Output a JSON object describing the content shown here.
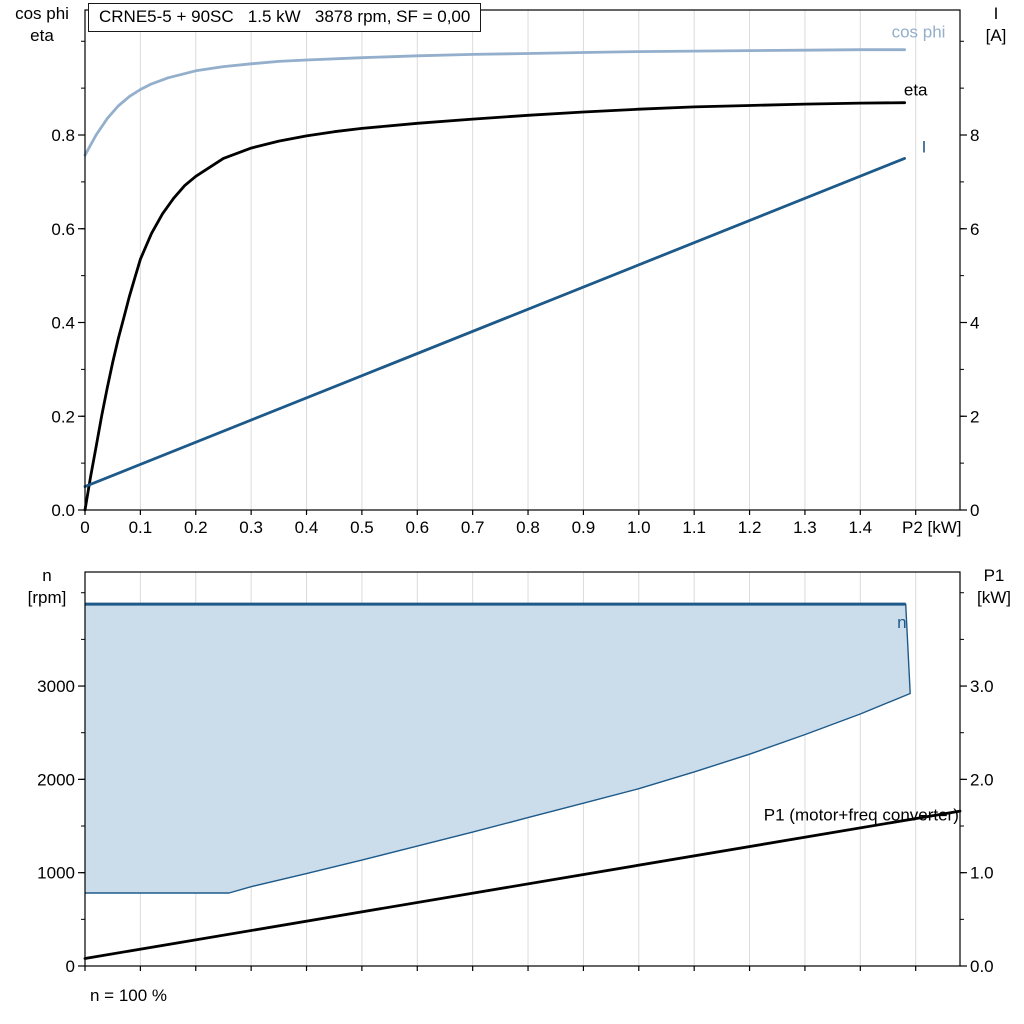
{
  "header": {
    "title_box": "CRNE5-5 + 90SC   1.5 kW   3878 rpm, SF = 0,00"
  },
  "axis_titles": {
    "top_left_1": "cos phi",
    "top_left_2": "eta",
    "top_right_1": "I",
    "top_right_2": "[A]",
    "x_unit": "P2 [kW]",
    "bottom_left_1": "n",
    "bottom_left_2": "[rpm]",
    "bottom_right_1": "P1",
    "bottom_right_2": "[kW]",
    "footnote": "n = 100 %"
  },
  "colors": {
    "curve_blue": "#1E5A89",
    "light_blue": "#93AFCC",
    "fill_blue": "#CBDCEB",
    "grid": "#DBDBDB",
    "black": "#000000"
  },
  "chart_data": [
    {
      "id": "motor-performance-chart",
      "type": "line",
      "title": "CRNE5-5 + 90SC   1.5 kW   3878 rpm, SF = 0,00",
      "x": {
        "label": "P2 [kW]",
        "min": 0,
        "max": 1.58,
        "grid_step": 0.1,
        "grid_max": 1.5,
        "labels": [
          {
            "v": 0,
            "t": "0"
          },
          {
            "v": 0.1,
            "t": "0.1"
          },
          {
            "v": 0.2,
            "t": "0.2"
          },
          {
            "v": 0.3,
            "t": "0.3"
          },
          {
            "v": 0.4,
            "t": "0.4"
          },
          {
            "v": 0.5,
            "t": "0.5"
          },
          {
            "v": 0.6,
            "t": "0.6"
          },
          {
            "v": 0.7,
            "t": "0.7"
          },
          {
            "v": 0.8,
            "t": "0.8"
          },
          {
            "v": 0.9,
            "t": "0.9"
          },
          {
            "v": 1.0,
            "t": "1.0"
          },
          {
            "v": 1.1,
            "t": "1.1"
          },
          {
            "v": 1.2,
            "t": "1.2"
          },
          {
            "v": 1.3,
            "t": "1.3"
          },
          {
            "v": 1.4,
            "t": "1.4"
          }
        ]
      },
      "y_left": {
        "label": "cos phi / eta",
        "min": 0,
        "max": 1.0667,
        "minor_step": 0.1,
        "labels": [
          {
            "v": 0,
            "t": "0.0"
          },
          {
            "v": 0.2,
            "t": "0.2"
          },
          {
            "v": 0.4,
            "t": "0.4"
          },
          {
            "v": 0.6,
            "t": "0.6"
          },
          {
            "v": 0.8,
            "t": "0.8"
          }
        ]
      },
      "y_right": {
        "label": "I [A]",
        "min": 0,
        "max": 10.667,
        "minor_step": 1,
        "labels": [
          {
            "v": 0,
            "t": "0"
          },
          {
            "v": 2,
            "t": "2"
          },
          {
            "v": 4,
            "t": "4"
          },
          {
            "v": 6,
            "t": "6"
          },
          {
            "v": 8,
            "t": "8"
          }
        ]
      },
      "series": [
        {
          "name": "cos phi",
          "axis": "left",
          "color": "#93AFCC",
          "width": 2.8,
          "points": [
            [
              0,
              0.757
            ],
            [
              0.02,
              0.8
            ],
            [
              0.04,
              0.835
            ],
            [
              0.06,
              0.862
            ],
            [
              0.08,
              0.882
            ],
            [
              0.1,
              0.897
            ],
            [
              0.12,
              0.909
            ],
            [
              0.15,
              0.922
            ],
            [
              0.2,
              0.937
            ],
            [
              0.25,
              0.946
            ],
            [
              0.3,
              0.952
            ],
            [
              0.35,
              0.957
            ],
            [
              0.4,
              0.96
            ],
            [
              0.5,
              0.965
            ],
            [
              0.6,
              0.969
            ],
            [
              0.7,
              0.972
            ],
            [
              0.8,
              0.974
            ],
            [
              0.9,
              0.976
            ],
            [
              1.0,
              0.978
            ],
            [
              1.1,
              0.979
            ],
            [
              1.2,
              0.98
            ],
            [
              1.3,
              0.981
            ],
            [
              1.4,
              0.982
            ],
            [
              1.48,
              0.982
            ]
          ]
        },
        {
          "name": "eta",
          "axis": "left",
          "color": "#000000",
          "width": 2.8,
          "points": [
            [
              0,
              0.0
            ],
            [
              0.01,
              0.07
            ],
            [
              0.02,
              0.135
            ],
            [
              0.03,
              0.2
            ],
            [
              0.04,
              0.26
            ],
            [
              0.05,
              0.315
            ],
            [
              0.06,
              0.365
            ],
            [
              0.07,
              0.41
            ],
            [
              0.08,
              0.455
            ],
            [
              0.09,
              0.495
            ],
            [
              0.1,
              0.535
            ],
            [
              0.12,
              0.59
            ],
            [
              0.14,
              0.632
            ],
            [
              0.16,
              0.665
            ],
            [
              0.18,
              0.692
            ],
            [
              0.2,
              0.712
            ],
            [
              0.25,
              0.75
            ],
            [
              0.3,
              0.772
            ],
            [
              0.35,
              0.787
            ],
            [
              0.4,
              0.798
            ],
            [
              0.45,
              0.807
            ],
            [
              0.5,
              0.814
            ],
            [
              0.6,
              0.825
            ],
            [
              0.7,
              0.834
            ],
            [
              0.8,
              0.842
            ],
            [
              0.9,
              0.849
            ],
            [
              1.0,
              0.855
            ],
            [
              1.1,
              0.86
            ],
            [
              1.2,
              0.863
            ],
            [
              1.3,
              0.866
            ],
            [
              1.4,
              0.868
            ],
            [
              1.48,
              0.869
            ]
          ]
        },
        {
          "name": "I",
          "axis": "right",
          "color": "#1E5A89",
          "width": 2.8,
          "points": [
            [
              0,
              0.5
            ],
            [
              1.48,
              7.5
            ]
          ]
        }
      ],
      "annotations": [
        {
          "text": "cos phi",
          "x": 1.505,
          "axis": "left",
          "y": 1.008,
          "color": "#93AFCC",
          "anchor": "middle"
        },
        {
          "text": "eta",
          "x": 1.5,
          "axis": "left",
          "y": 0.884,
          "color": "#000000",
          "anchor": "middle"
        },
        {
          "text": "I",
          "x": 1.515,
          "axis": "right",
          "y": 7.63,
          "color": "#1E5A89",
          "anchor": "middle"
        }
      ]
    },
    {
      "id": "speed-power-chart",
      "type": "line",
      "x": {
        "label": "",
        "min": 0,
        "max": 1.58,
        "grid_step": 0.1,
        "grid_max": 1.5,
        "labels": []
      },
      "y_left": {
        "label": "n [rpm]",
        "min": 0,
        "max": 4222,
        "minor_step": 500,
        "labels": [
          {
            "v": 0,
            "t": "0"
          },
          {
            "v": 1000,
            "t": "1000"
          },
          {
            "v": 2000,
            "t": "2000"
          },
          {
            "v": 3000,
            "t": "3000"
          }
        ]
      },
      "y_right": {
        "label": "P1 [kW]",
        "min": 0,
        "max": 4.222,
        "minor_step": 0.5,
        "labels": [
          {
            "v": 0,
            "t": "0.0"
          },
          {
            "v": 1,
            "t": "1.0"
          },
          {
            "v": 2,
            "t": "2.0"
          },
          {
            "v": 3,
            "t": "3.0"
          }
        ]
      },
      "envelope": {
        "name": "n operating range",
        "axis": "left",
        "fill": "#CBDCEB",
        "stroke": "#1E5A89",
        "n_max_rpm": 3878,
        "points": [
          [
            0,
            3878
          ],
          [
            1.482,
            3878
          ],
          [
            1.49,
            2920
          ],
          [
            1.4,
            2700
          ],
          [
            1.3,
            2480
          ],
          [
            1.2,
            2270
          ],
          [
            1.1,
            2080
          ],
          [
            1.0,
            1900
          ],
          [
            0.9,
            1745
          ],
          [
            0.8,
            1590
          ],
          [
            0.7,
            1435
          ],
          [
            0.6,
            1285
          ],
          [
            0.5,
            1135
          ],
          [
            0.4,
            990
          ],
          [
            0.3,
            850
          ],
          [
            0.26,
            782
          ],
          [
            0,
            782
          ]
        ]
      },
      "series": [
        {
          "name": "P1 (motor+freq converter)",
          "axis": "right",
          "color": "#000000",
          "width": 2.8,
          "points": [
            [
              0,
              0.08
            ],
            [
              1.58,
              1.66
            ]
          ]
        }
      ],
      "annotations": [
        {
          "text": "n",
          "x": 1.475,
          "axis": "left",
          "y": 3620,
          "color": "#1E5A89",
          "anchor": "middle"
        },
        {
          "text": "P1 (motor+freq converter)",
          "x": 1.578,
          "axis": "right",
          "y": 1.56,
          "color": "#000000",
          "anchor": "end"
        }
      ]
    }
  ]
}
